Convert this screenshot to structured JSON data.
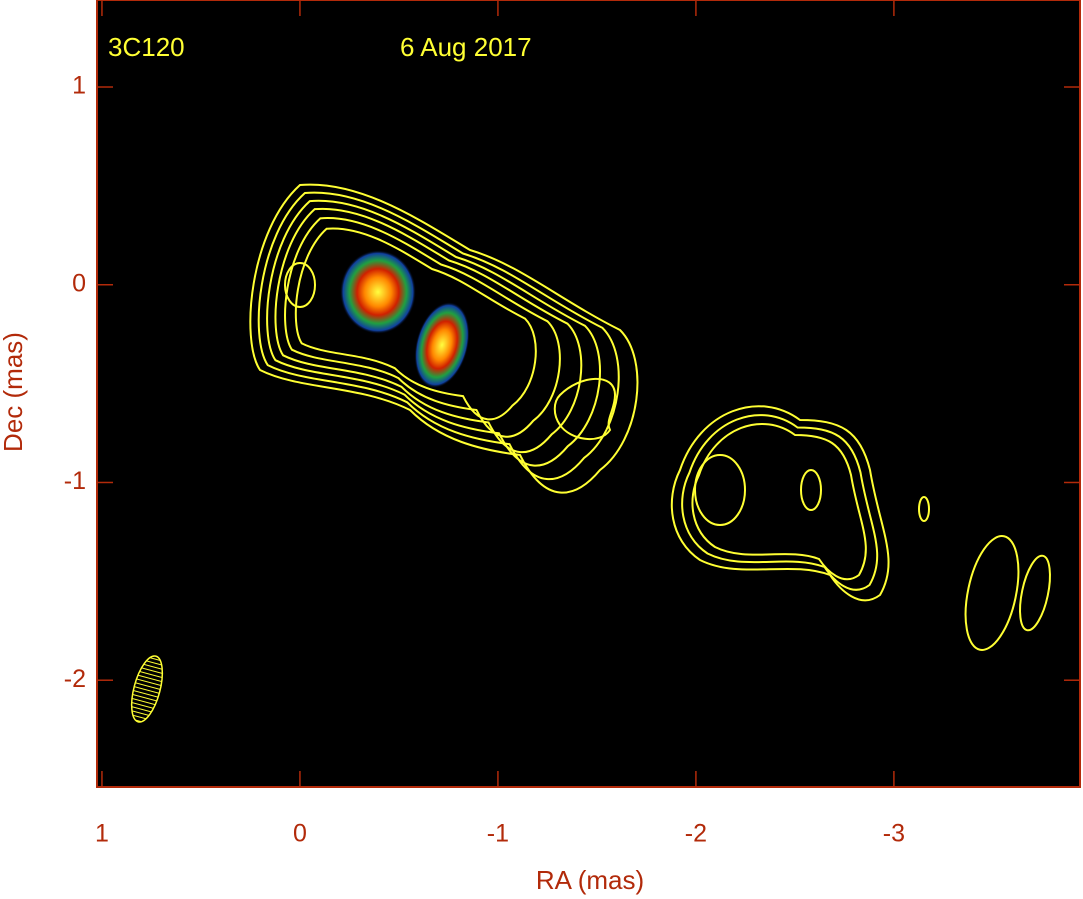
{
  "chart_data": {
    "type": "image",
    "source_label": "3C120",
    "date_label": "6 Aug 2017",
    "x_label": "RA (mas)",
    "y_label": "Dec (mas)",
    "xlim": [
      1.025,
      -3.94
    ],
    "ylim": [
      -2.54,
      1.44
    ],
    "xticks": [
      1,
      0,
      -1,
      -2,
      -3
    ],
    "yticks": [
      1,
      0,
      -1,
      -2
    ],
    "axis_color": "#b22a0a",
    "contour_color": "#ffff33",
    "background": "#000000"
  }
}
